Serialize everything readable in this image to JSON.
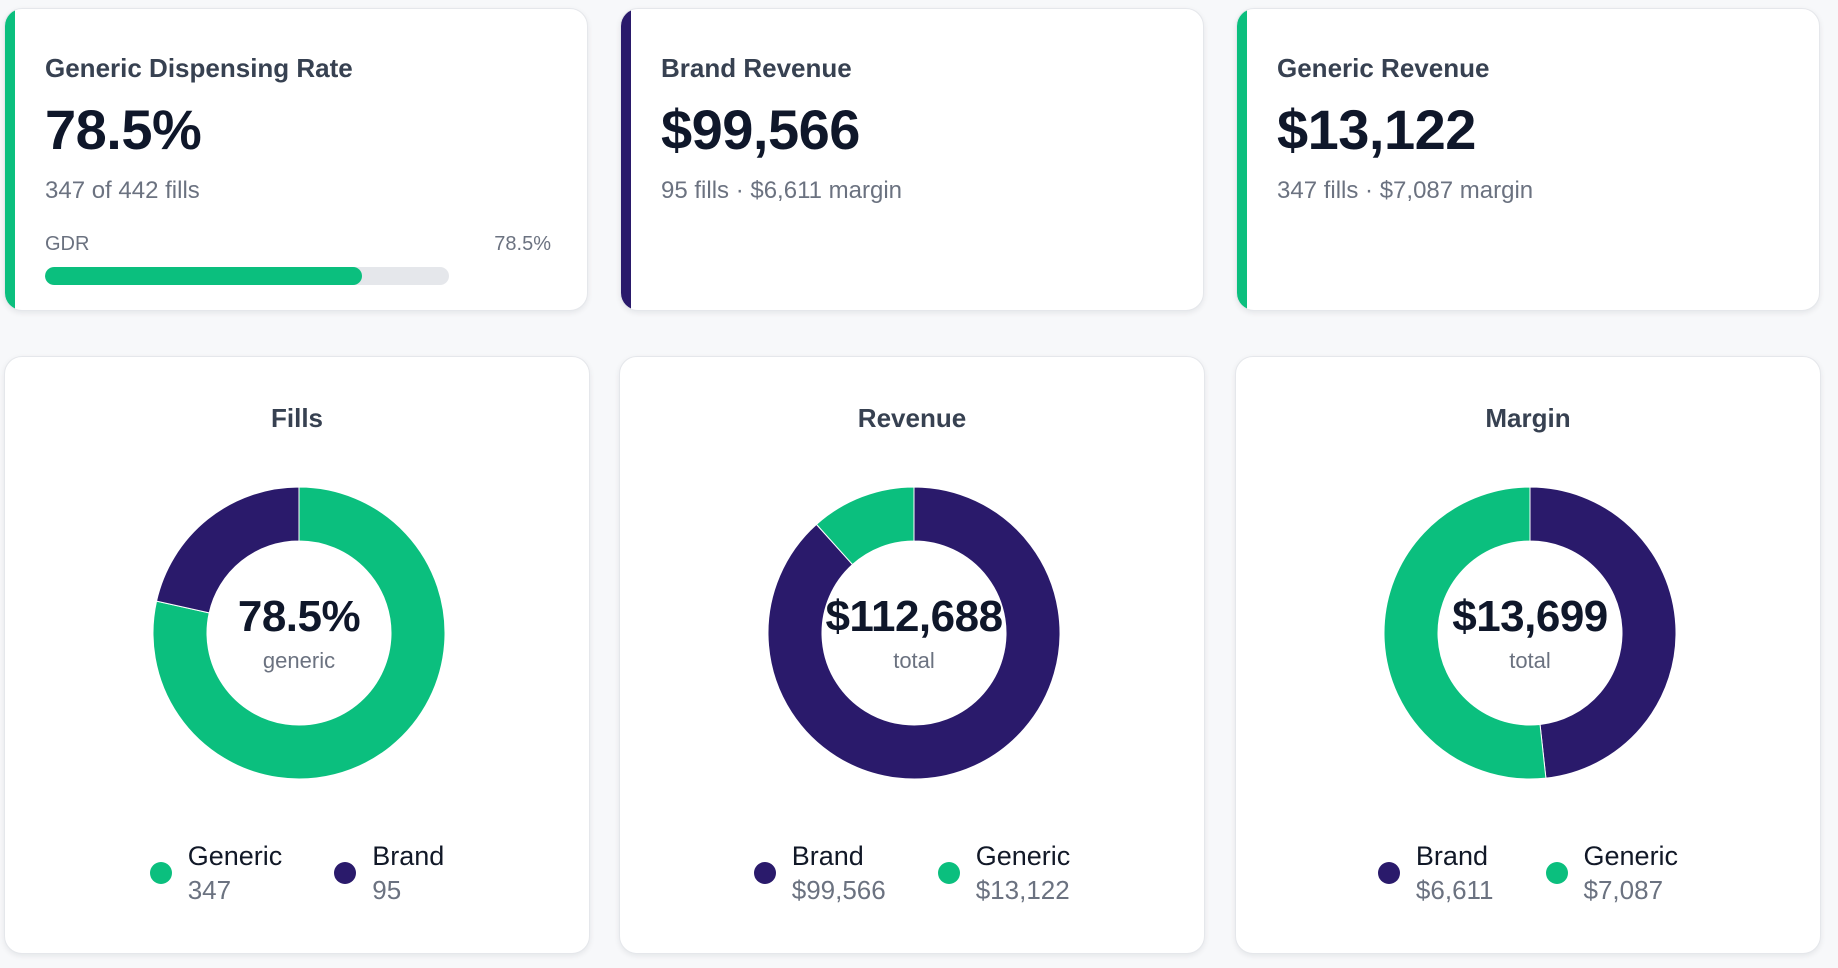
{
  "colors": {
    "generic": "#0bbf7e",
    "brand": "#2a1a6b",
    "track": "#e5e7eb"
  },
  "kpis": [
    {
      "title": "Generic Dispensing Rate",
      "value": "78.5%",
      "subtitle": "347 of 442 fills",
      "accent": "generic",
      "progress": {
        "label": "GDR",
        "value_text": "78.5%",
        "fraction": 0.785
      }
    },
    {
      "title": "Brand Revenue",
      "value": "$99,566",
      "subtitle": "95 fills · $6,611 margin",
      "accent": "brand"
    },
    {
      "title": "Generic Revenue",
      "value": "$13,122",
      "subtitle": "347 fills · $7,087 margin",
      "accent": "generic"
    }
  ],
  "chart_data": [
    {
      "type": "pie",
      "title": "Fills",
      "center_value": "78.5%",
      "center_label": "generic",
      "slices": [
        {
          "name": "Generic",
          "value": 347,
          "display": "347",
          "color": "generic"
        },
        {
          "name": "Brand",
          "value": 95,
          "display": "95",
          "color": "brand"
        }
      ]
    },
    {
      "type": "pie",
      "title": "Revenue",
      "center_value": "$112,688",
      "center_label": "total",
      "slices": [
        {
          "name": "Brand",
          "value": 99566,
          "display": "$99,566",
          "color": "brand"
        },
        {
          "name": "Generic",
          "value": 13122,
          "display": "$13,122",
          "color": "generic"
        }
      ]
    },
    {
      "type": "pie",
      "title": "Margin",
      "center_value": "$13,699",
      "center_label": "total",
      "slices": [
        {
          "name": "Brand",
          "value": 6611,
          "display": "$6,611",
          "color": "brand"
        },
        {
          "name": "Generic",
          "value": 7087,
          "display": "$7,087",
          "color": "generic"
        }
      ]
    }
  ]
}
